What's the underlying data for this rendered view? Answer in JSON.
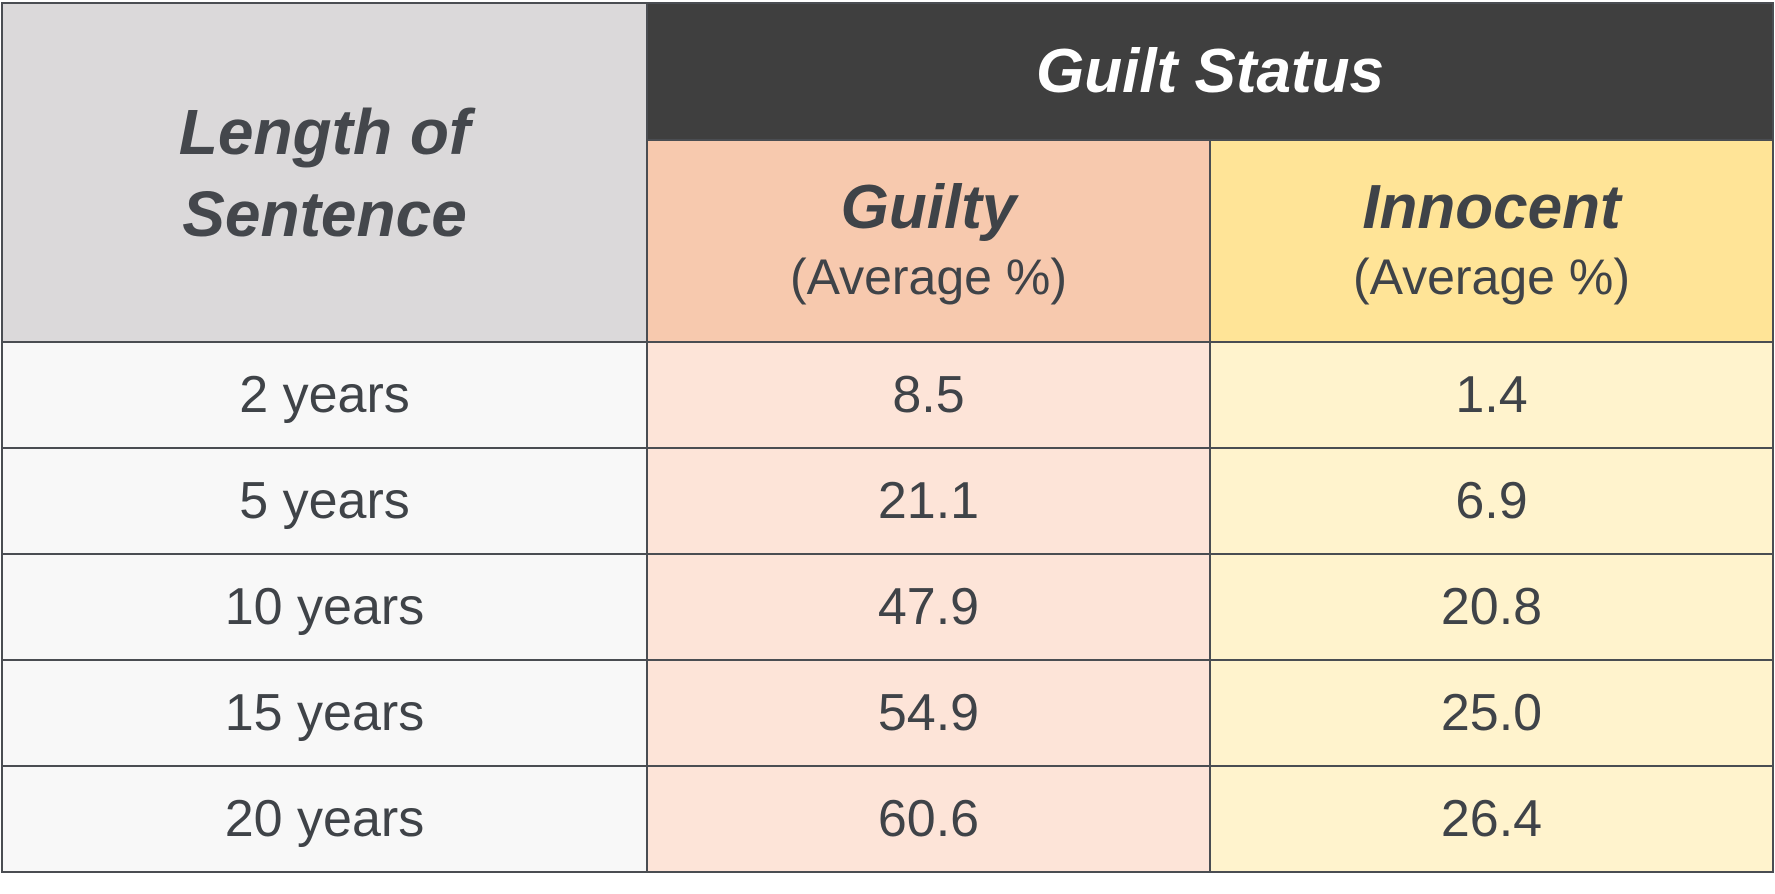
{
  "chart_data": {
    "type": "table",
    "header": {
      "row_label": [
        "Length of",
        "Sentence"
      ],
      "group_label": "Guilt Status",
      "columns": [
        {
          "name": "Guilty",
          "note": "(Average %)"
        },
        {
          "name": "Innocent",
          "note": "(Average %)"
        }
      ]
    },
    "rows": [
      {
        "label": "2 years",
        "guilty": "8.5",
        "innocent": "1.4"
      },
      {
        "label": "5 years",
        "guilty": "21.1",
        "innocent": "6.9"
      },
      {
        "label": "10 years",
        "guilty": "47.9",
        "innocent": "20.8"
      },
      {
        "label": "15 years",
        "guilty": "54.9",
        "innocent": "25.0"
      },
      {
        "label": "20 years",
        "guilty": "60.6",
        "innocent": "26.4"
      }
    ]
  },
  "colors": {
    "corner_bg": "#dbd9da",
    "group_bg": "#3f3f3f",
    "guilty_head_bg": "#f7c9ae",
    "innocent_head_bg": "#ffe497",
    "guilty_cell_bg": "#fde4d8",
    "innocent_cell_bg": "#fff3cd",
    "text": "#3f4348"
  }
}
